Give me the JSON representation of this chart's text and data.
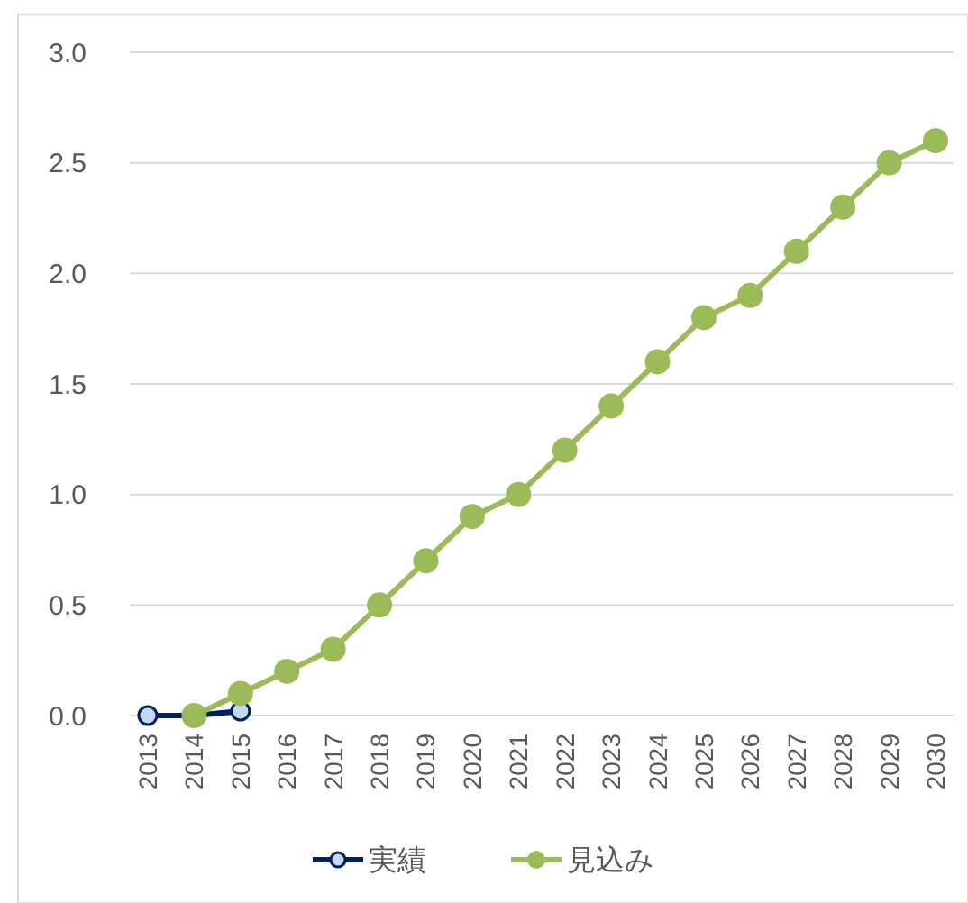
{
  "chart_data": {
    "type": "line",
    "categories": [
      "2013",
      "2014",
      "2015",
      "2016",
      "2017",
      "2018",
      "2019",
      "2020",
      "2021",
      "2022",
      "2023",
      "2024",
      "2025",
      "2026",
      "2027",
      "2028",
      "2029",
      "2030"
    ],
    "series": [
      {
        "name": "実績",
        "color": "#002060",
        "marker": "circle",
        "values": [
          0,
          0,
          0.02,
          null,
          null,
          null,
          null,
          null,
          null,
          null,
          null,
          null,
          null,
          null,
          null,
          null,
          null,
          null
        ]
      },
      {
        "name": "見込み",
        "color": "#9bbb59",
        "marker": "circle",
        "values": [
          null,
          0,
          0.1,
          0.2,
          0.3,
          0.5,
          0.7,
          0.9,
          1.0,
          1.2,
          1.4,
          1.6,
          1.8,
          1.9,
          2.1,
          2.3,
          2.5,
          2.6
        ]
      }
    ],
    "ylim": [
      0,
      3
    ],
    "yticks": [
      {
        "value": 0,
        "label": "0.0"
      },
      {
        "value": 0.5,
        "label": "0.5"
      },
      {
        "value": 1,
        "label": "1.0"
      },
      {
        "value": 1.5,
        "label": "1.5"
      },
      {
        "value": 2,
        "label": "2.0"
      },
      {
        "value": 2.5,
        "label": "2.5"
      },
      {
        "value": 3,
        "label": "3.0"
      }
    ],
    "grid": "y",
    "legend": "bottom"
  }
}
